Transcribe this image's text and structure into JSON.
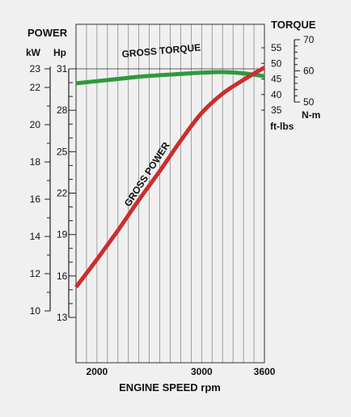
{
  "chart_data": {
    "type": "line",
    "xlabel": "ENGINE SPEED rpm",
    "x_ticks": [
      2000,
      3000,
      3600
    ],
    "xlim": [
      1800,
      3600
    ],
    "left_axis": {
      "title": "POWER",
      "kw_unit": "kW",
      "hp_unit": "Hp",
      "kw_ticks": [
        10,
        12,
        14,
        16,
        18,
        20,
        22,
        23
      ],
      "hp_ticks": [
        13,
        16,
        19,
        22,
        25,
        28,
        31
      ]
    },
    "right_axis": {
      "title": "TORQUE",
      "ftlbs_unit": "ft-lbs",
      "nm_unit": "N-m",
      "ftlbs_ticks": [
        35,
        40,
        45,
        50,
        55
      ],
      "nm_ticks": [
        50,
        60,
        70
      ]
    },
    "series": [
      {
        "name": "GROSS TORQUE",
        "unit": "ft-lbs",
        "color": "#2e9a3c",
        "x": [
          1800,
          2000,
          2200,
          2400,
          2600,
          2800,
          3000,
          3200,
          3400,
          3600
        ],
        "values": [
          43.6,
          44.3,
          45.0,
          45.7,
          46.2,
          46.6,
          47.0,
          47.2,
          46.8,
          45.9
        ]
      },
      {
        "name": "GROSS POWER",
        "unit": "Hp",
        "color": "#cc2d2d",
        "x": [
          1800,
          2000,
          2200,
          2400,
          2600,
          2800,
          3000,
          3200,
          3400,
          3600
        ],
        "values": [
          15.2,
          17.2,
          19.3,
          21.5,
          23.6,
          25.8,
          27.8,
          29.2,
          30.2,
          31.1
        ]
      }
    ]
  }
}
